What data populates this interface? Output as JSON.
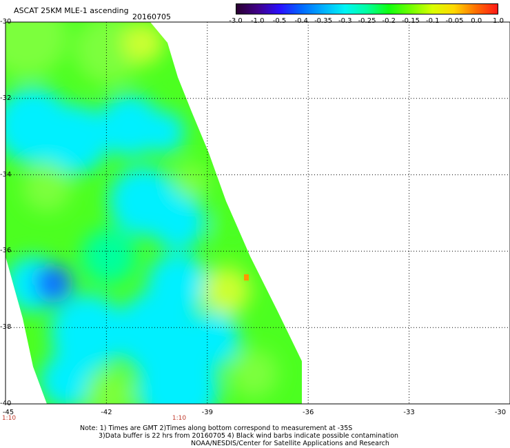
{
  "header": {
    "title": "ASCAT 25KM MLE-1 ascending",
    "date": "20160705"
  },
  "colorbar": {
    "labels": [
      "-3.0",
      "-1.0",
      "-0.5",
      "-0.4",
      "-0.35",
      "-0.3",
      "-0.25",
      "-0.2",
      "-0.15",
      "-0.1",
      "-0.05",
      "0.0",
      "1.0"
    ],
    "colors": [
      "#2a0030",
      "#40008a",
      "#2a10ff",
      "#0068ff",
      "#00b0ff",
      "#00f5f5",
      "#00ffa0",
      "#10ff10",
      "#70ff00",
      "#d8ff00",
      "#ffd800",
      "#ff7000",
      "#ff1818"
    ]
  },
  "map": {
    "lat_labels": [
      "-30",
      "-32",
      "-34",
      "-36",
      "-38",
      "-40"
    ],
    "lon_labels": [
      "-45",
      "-42",
      "-39",
      "-36",
      "-33",
      "-30"
    ],
    "time_labels": [
      "1:10",
      "1:10"
    ],
    "colors": {
      "green": "#4cff20",
      "lightgreen": "#7cff3c",
      "teal": "#00ff9c",
      "cyan": "#00f0ff",
      "blue": "#0a78ff",
      "deepblue": "#1458ff",
      "yellowgreen": "#ccff30",
      "orange": "#ff9800"
    }
  },
  "notes": {
    "line1": "Note: 1) Times are GMT 2)Times along bottom correspond to measurement at -35S",
    "line2": "3)Data buffer is 22 hrs from 20160705 4) Black wind barbs indicate possible contamination",
    "line3": "NOAA/NESDIS/Center for Satellite Applications and Research"
  }
}
